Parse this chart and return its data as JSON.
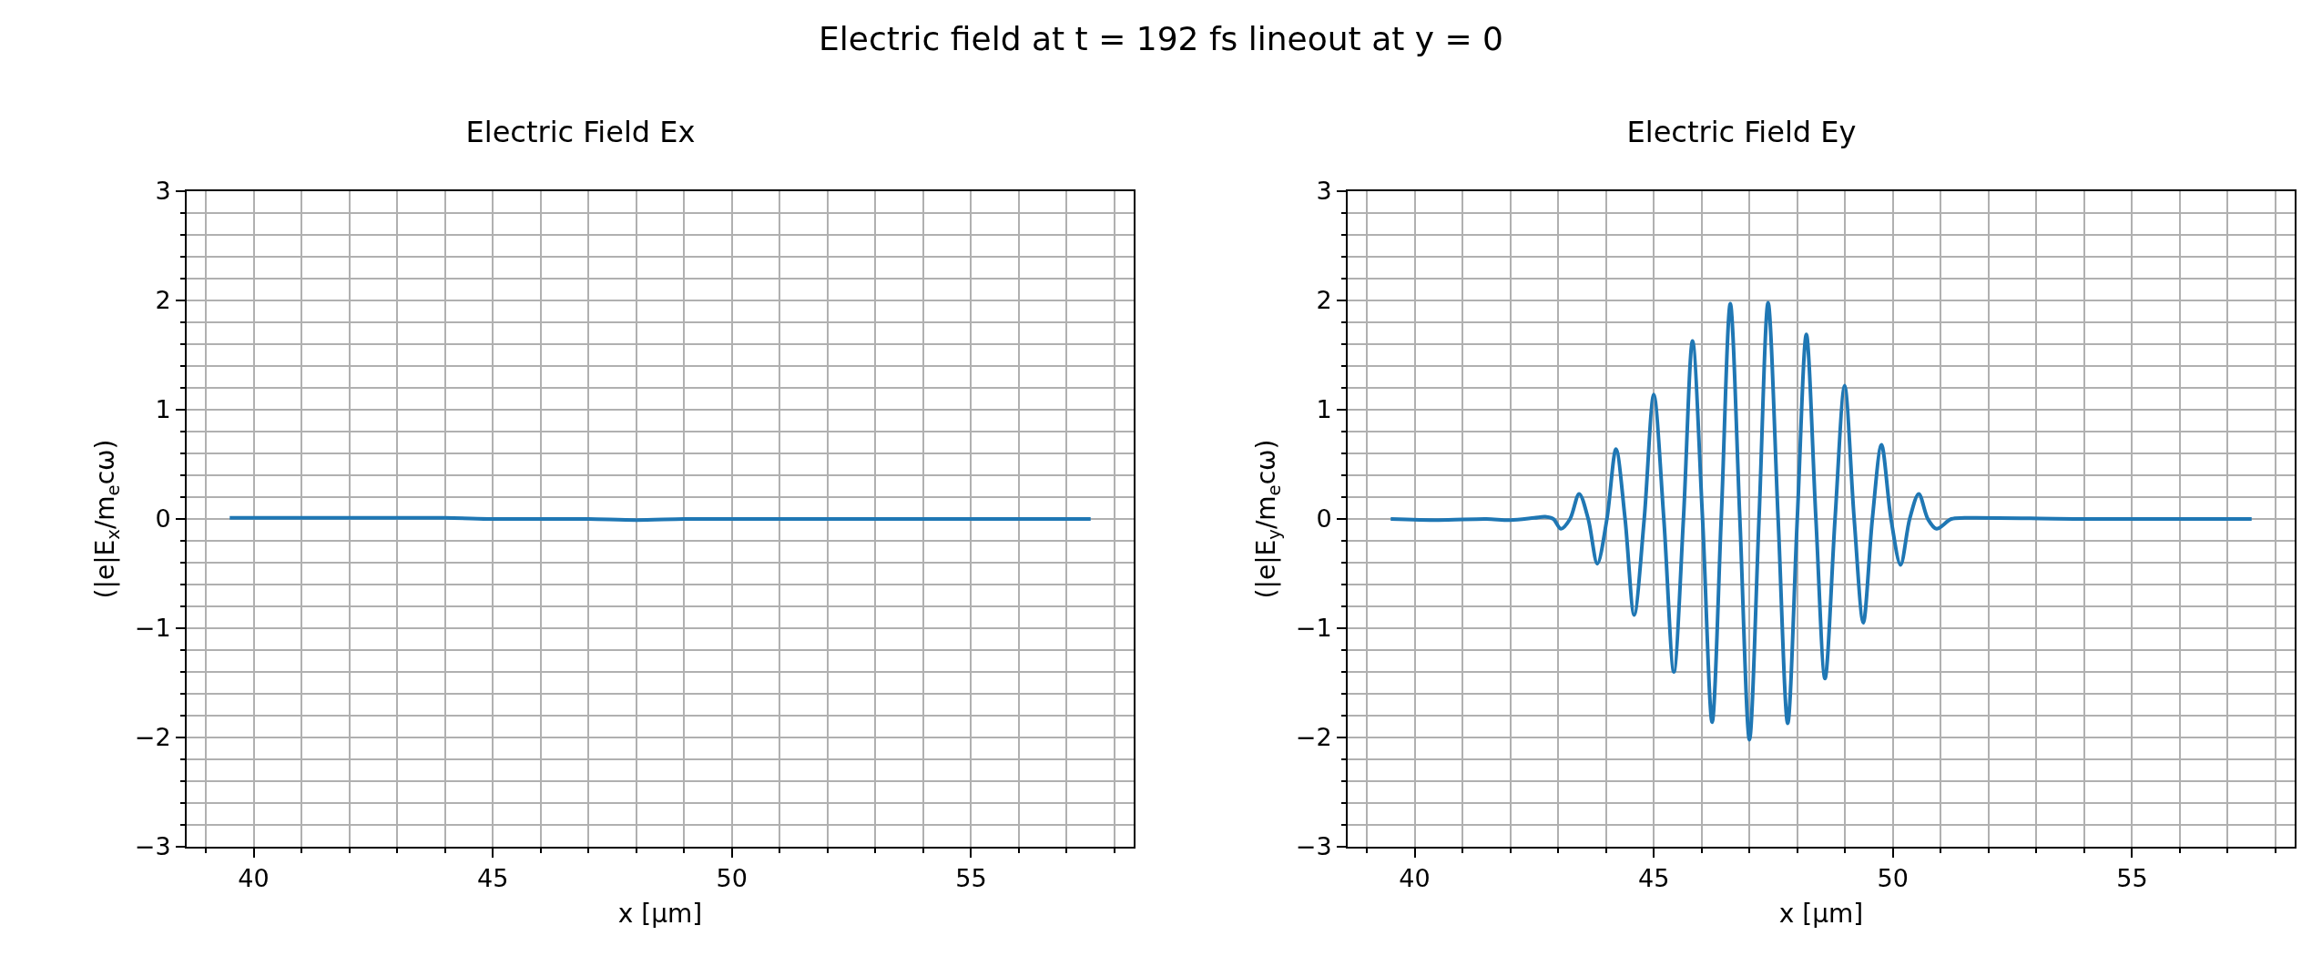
{
  "chart_data": [
    {
      "type": "line",
      "title": "Electric Field Ex",
      "annotations": [
        "Electric field at t = 192 fs lineout at y = 0"
      ],
      "xlabel": "x [µm]",
      "ylabel": "(|e|E$_{x}$/m$_{e}$cω)",
      "x": [
        39.5,
        42,
        44,
        45,
        46,
        47,
        48,
        49,
        50,
        52,
        55,
        57.5
      ],
      "series": [
        {
          "color": "#1f77b4",
          "values": [
            0.01,
            0.01,
            0.01,
            0.0,
            0.0,
            0.0,
            -0.01,
            0.0,
            0.0,
            0.0,
            0.0,
            0.0
          ]
        }
      ],
      "xlim": [
        38.6,
        58.4
      ],
      "ylim": [
        -3,
        3
      ],
      "grid": true,
      "xticks": [
        {
          "value": 39,
          "label": null
        },
        40,
        {
          "value": 41,
          "label": null
        },
        {
          "value": 42,
          "label": null
        },
        {
          "value": 43,
          "label": null
        },
        {
          "value": 44,
          "label": null
        },
        45,
        {
          "value": 46,
          "label": null
        },
        {
          "value": 47,
          "label": null
        },
        {
          "value": 48,
          "label": null
        },
        {
          "value": 49,
          "label": null
        },
        50,
        {
          "value": 51,
          "label": null
        },
        {
          "value": 52,
          "label": null
        },
        {
          "value": 53,
          "label": null
        },
        {
          "value": 54,
          "label": null
        },
        55,
        {
          "value": 56,
          "label": null
        },
        {
          "value": 57,
          "label": null
        },
        {
          "value": 58,
          "label": null
        }
      ],
      "yticks": [
        {
          "value": -3,
          "label": "−3"
        },
        {
          "value": -2.8,
          "label": null
        },
        {
          "value": -2.6,
          "label": null
        },
        {
          "value": -2.4,
          "label": null
        },
        {
          "value": -2.2,
          "label": null
        },
        {
          "value": -2,
          "label": "−2"
        },
        {
          "value": -1.8,
          "label": null
        },
        {
          "value": -1.6,
          "label": null
        },
        {
          "value": -1.4,
          "label": null
        },
        {
          "value": -1.2,
          "label": null
        },
        {
          "value": -1,
          "label": "−1"
        },
        {
          "value": -0.8,
          "label": null
        },
        {
          "value": -0.6,
          "label": null
        },
        {
          "value": -0.4,
          "label": null
        },
        {
          "value": -0.2,
          "label": null
        },
        0,
        {
          "value": 0.2,
          "label": null
        },
        {
          "value": 0.4,
          "label": null
        },
        {
          "value": 0.6,
          "label": null
        },
        {
          "value": 0.8,
          "label": null
        },
        1,
        {
          "value": 1.2,
          "label": null
        },
        {
          "value": 1.4,
          "label": null
        },
        {
          "value": 1.6,
          "label": null
        },
        {
          "value": 1.8,
          "label": null
        },
        2,
        {
          "value": 2.2,
          "label": null
        },
        {
          "value": 2.4,
          "label": null
        },
        {
          "value": 2.6,
          "label": null
        },
        {
          "value": 2.8,
          "label": null
        },
        3
      ]
    },
    {
      "type": "line",
      "title": "Electric Field Ey",
      "xlabel": "x [µm]",
      "ylabel": "(|e|E$_{y}$/m$_{e}$cω)",
      "x": [
        39.5,
        40.5,
        41.5,
        42,
        42.5,
        42.73,
        42.9,
        43.06,
        43.25,
        43.44,
        43.63,
        43.82,
        44.02,
        44.21,
        44.4,
        44.59,
        44.8,
        45.0,
        45.21,
        45.42,
        45.62,
        45.81,
        46.02,
        46.22,
        46.41,
        46.6,
        46.8,
        47.0,
        47.2,
        47.39,
        47.6,
        47.8,
        48.0,
        48.19,
        48.39,
        48.58,
        48.79,
        48.99,
        49.19,
        49.38,
        49.57,
        49.76,
        49.96,
        50.16,
        50.35,
        50.54,
        50.73,
        50.91,
        51.22,
        51.5,
        54,
        57.5
      ],
      "series": [
        {
          "color": "#1f77b4",
          "values": [
            0.0,
            -0.01,
            0.0,
            -0.01,
            0.01,
            0.02,
            0.0,
            -0.09,
            0.0,
            0.23,
            0.0,
            -0.41,
            0.0,
            0.64,
            0.0,
            -0.88,
            0.0,
            1.14,
            0.0,
            -1.4,
            0.0,
            1.63,
            0.0,
            -1.86,
            0.0,
            1.97,
            0.0,
            -2.02,
            0.0,
            1.98,
            0.0,
            -1.87,
            0.0,
            1.69,
            0.0,
            -1.46,
            0.0,
            1.22,
            0.0,
            -0.95,
            0.0,
            0.68,
            0.0,
            -0.42,
            0.0,
            0.23,
            0.0,
            -0.09,
            0.0,
            0.01,
            0.0,
            0.0
          ]
        }
      ],
      "xlim": [
        38.6,
        58.4
      ],
      "ylim": [
        -3,
        3
      ],
      "grid": true,
      "xticks": [
        {
          "value": 39,
          "label": null
        },
        40,
        {
          "value": 41,
          "label": null
        },
        {
          "value": 42,
          "label": null
        },
        {
          "value": 43,
          "label": null
        },
        {
          "value": 44,
          "label": null
        },
        45,
        {
          "value": 46,
          "label": null
        },
        {
          "value": 47,
          "label": null
        },
        {
          "value": 48,
          "label": null
        },
        {
          "value": 49,
          "label": null
        },
        50,
        {
          "value": 51,
          "label": null
        },
        {
          "value": 52,
          "label": null
        },
        {
          "value": 53,
          "label": null
        },
        {
          "value": 54,
          "label": null
        },
        55,
        {
          "value": 56,
          "label": null
        },
        {
          "value": 57,
          "label": null
        },
        {
          "value": 58,
          "label": null
        }
      ],
      "yticks": [
        {
          "value": -3,
          "label": "−3"
        },
        {
          "value": -2.8,
          "label": null
        },
        {
          "value": -2.6,
          "label": null
        },
        {
          "value": -2.4,
          "label": null
        },
        {
          "value": -2.2,
          "label": null
        },
        {
          "value": -2,
          "label": "−2"
        },
        {
          "value": -1.8,
          "label": null
        },
        {
          "value": -1.6,
          "label": null
        },
        {
          "value": -1.4,
          "label": null
        },
        {
          "value": -1.2,
          "label": null
        },
        {
          "value": -1,
          "label": "−1"
        },
        {
          "value": -0.8,
          "label": null
        },
        {
          "value": -0.6,
          "label": null
        },
        {
          "value": -0.4,
          "label": null
        },
        {
          "value": -0.2,
          "label": null
        },
        0,
        {
          "value": 0.2,
          "label": null
        },
        {
          "value": 0.4,
          "label": null
        },
        {
          "value": 0.6,
          "label": null
        },
        {
          "value": 0.8,
          "label": null
        },
        1,
        {
          "value": 1.2,
          "label": null
        },
        {
          "value": 1.4,
          "label": null
        },
        {
          "value": 1.6,
          "label": null
        },
        {
          "value": 1.8,
          "label": null
        },
        2,
        {
          "value": 2.2,
          "label": null
        },
        {
          "value": 2.4,
          "label": null
        },
        {
          "value": 2.6,
          "label": null
        },
        {
          "value": 2.8,
          "label": null
        },
        3
      ]
    }
  ]
}
